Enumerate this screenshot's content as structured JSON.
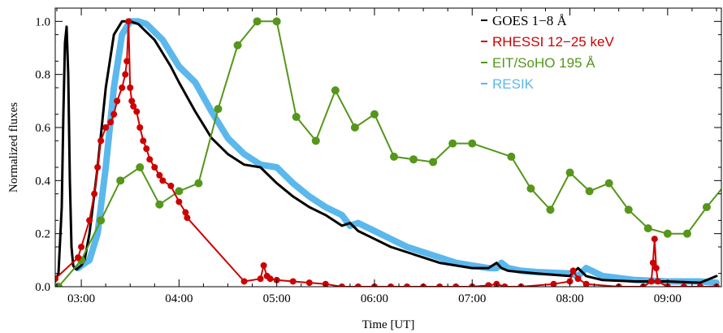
{
  "chart_data": {
    "type": "line",
    "xlabel": "Time [UT]",
    "ylabel": "Normalized fluxes",
    "xlim": [
      "02:44",
      "09:33"
    ],
    "ylim": [
      0.0,
      1.05
    ],
    "x_ticks": [
      "03:00",
      "04:00",
      "05:00",
      "06:00",
      "07:00",
      "08:00",
      "09:00"
    ],
    "y_ticks": [
      "0.0",
      "0.2",
      "0.4",
      "0.6",
      "0.8",
      "1.0"
    ],
    "grid": false,
    "legend_position": "top-right",
    "series": [
      {
        "name": "GOES 1−8 Å",
        "color": "#000000",
        "x": [
          "02:44",
          "02:46",
          "02:48",
          "02:49",
          "02:50",
          "02:51",
          "02:52",
          "02:53",
          "02:54",
          "02:55",
          "02:56",
          "02:57",
          "02:58",
          "03:00",
          "03:02",
          "03:05",
          "03:10",
          "03:15",
          "03:20",
          "03:25",
          "03:30",
          "03:35",
          "03:40",
          "03:45",
          "03:50",
          "03:55",
          "04:00",
          "04:10",
          "04:20",
          "04:30",
          "04:40",
          "04:50",
          "05:00",
          "05:10",
          "05:20",
          "05:30",
          "05:40",
          "05:45",
          "05:50",
          "06:00",
          "06:10",
          "06:20",
          "06:30",
          "06:40",
          "06:50",
          "07:00",
          "07:10",
          "07:15",
          "07:18",
          "07:22",
          "07:30",
          "07:40",
          "08:00",
          "08:05",
          "08:10",
          "08:20",
          "08:40",
          "09:00",
          "09:20",
          "09:30"
        ],
        "y": [
          0.02,
          0.05,
          0.3,
          0.65,
          0.92,
          0.98,
          0.8,
          0.4,
          0.15,
          0.08,
          0.07,
          0.065,
          0.07,
          0.08,
          0.1,
          0.2,
          0.45,
          0.75,
          0.95,
          1.0,
          1.0,
          0.99,
          0.96,
          0.93,
          0.88,
          0.83,
          0.77,
          0.66,
          0.56,
          0.5,
          0.46,
          0.45,
          0.39,
          0.34,
          0.3,
          0.27,
          0.23,
          0.24,
          0.21,
          0.18,
          0.15,
          0.13,
          0.11,
          0.09,
          0.08,
          0.07,
          0.07,
          0.09,
          0.07,
          0.06,
          0.055,
          0.05,
          0.04,
          0.07,
          0.04,
          0.025,
          0.02,
          0.02,
          0.015,
          0.04
        ]
      },
      {
        "name": "RHESSI 12−25 keV",
        "color": "#cc0000",
        "x": [
          "02:44",
          "02:58",
          "03:00",
          "03:05",
          "03:08",
          "03:10",
          "03:12",
          "03:15",
          "03:18",
          "03:20",
          "03:22",
          "03:25",
          "03:27",
          "03:28",
          "03:29",
          "03:30",
          "03:31",
          "03:32",
          "03:34",
          "03:36",
          "03:38",
          "03:40",
          "03:42",
          "03:45",
          "03:48",
          "03:50",
          "03:55",
          "04:00",
          "04:04",
          "04:05",
          "04:40",
          "04:50",
          "04:52",
          "04:54",
          "04:56",
          "05:00",
          "05:10",
          "05:20",
          "05:30",
          "05:40",
          "05:50",
          "06:00",
          "06:10",
          "06:20",
          "06:30",
          "06:40",
          "06:50",
          "07:00",
          "07:10",
          "07:15",
          "07:20",
          "07:30",
          "07:50",
          "08:00",
          "08:02",
          "08:05",
          "08:10",
          "08:30",
          "08:45",
          "08:50",
          "08:51",
          "08:52",
          "08:53",
          "08:54",
          "09:00",
          "09:10",
          "09:20",
          "09:30"
        ],
        "y": [
          0.03,
          0.11,
          0.15,
          0.25,
          0.35,
          0.45,
          0.55,
          0.6,
          0.62,
          0.65,
          0.7,
          0.75,
          0.8,
          0.85,
          1.0,
          0.75,
          0.7,
          0.68,
          0.66,
          0.6,
          0.55,
          0.52,
          0.48,
          0.45,
          0.42,
          0.4,
          0.38,
          0.32,
          0.28,
          0.26,
          0.02,
          0.03,
          0.08,
          0.04,
          0.03,
          0.025,
          0.02,
          0.015,
          0.01,
          0.0,
          0.0,
          0.0,
          0.0,
          0.0,
          0.0,
          0.0,
          0.0,
          0.0,
          0.005,
          0.01,
          0.0,
          0.0,
          0.01,
          0.02,
          0.06,
          0.03,
          0.01,
          0.0,
          0.0,
          0.02,
          0.09,
          0.18,
          0.07,
          0.02,
          0.0,
          0.0,
          0.0,
          0.0
        ]
      },
      {
        "name": "EIT/SoHO 195 Å",
        "color": "#55961b",
        "x": [
          "02:46",
          "03:00",
          "03:12",
          "03:24",
          "03:36",
          "03:48",
          "04:00",
          "04:12",
          "04:24",
          "04:36",
          "04:48",
          "05:00",
          "05:12",
          "05:24",
          "05:36",
          "05:48",
          "06:00",
          "06:12",
          "06:24",
          "06:36",
          "06:48",
          "07:00",
          "07:24",
          "07:36",
          "07:48",
          "08:00",
          "08:12",
          "08:24",
          "08:36",
          "08:48",
          "09:00",
          "09:12",
          "09:24",
          "09:36"
        ],
        "y": [
          0.0,
          0.1,
          0.25,
          0.4,
          0.45,
          0.31,
          0.36,
          0.39,
          0.67,
          0.91,
          1.0,
          1.0,
          0.64,
          0.55,
          0.74,
          0.6,
          0.65,
          0.49,
          0.48,
          0.47,
          0.54,
          0.54,
          0.49,
          0.37,
          0.29,
          0.43,
          0.36,
          0.39,
          0.29,
          0.22,
          0.2,
          0.2,
          0.3,
          0.39
        ]
      },
      {
        "name": "RESIK",
        "color": "#5bb8ec",
        "x": [
          "02:58",
          "03:00",
          "03:05",
          "03:10",
          "03:15",
          "03:20",
          "03:25",
          "03:30",
          "03:35",
          "03:40",
          "03:45",
          "03:50",
          "03:55",
          "04:00",
          "04:10",
          "04:20",
          "04:30",
          "04:40",
          "04:50",
          "05:00",
          "05:10",
          "05:20",
          "05:30",
          "05:40",
          "05:45",
          "05:50",
          "06:00",
          "06:10",
          "06:20",
          "06:30",
          "06:40",
          "06:50",
          "07:00",
          "07:10",
          "07:15",
          "07:18",
          "07:22",
          "07:30",
          "07:40",
          "08:00",
          "08:05",
          "08:10",
          "08:20",
          "08:40",
          "09:00",
          "09:20",
          "09:30"
        ],
        "y": [
          0.07,
          0.08,
          0.1,
          0.2,
          0.45,
          0.75,
          0.95,
          1.0,
          1.0,
          0.99,
          0.96,
          0.93,
          0.88,
          0.83,
          0.77,
          0.66,
          0.56,
          0.5,
          0.46,
          0.45,
          0.39,
          0.34,
          0.3,
          0.27,
          0.23,
          0.24,
          0.21,
          0.18,
          0.15,
          0.13,
          0.11,
          0.09,
          0.08,
          0.07,
          0.07,
          0.09,
          0.07,
          0.06,
          0.055,
          0.05,
          0.04,
          0.07,
          0.04,
          0.025,
          0.02,
          0.02,
          0.015
        ]
      }
    ]
  }
}
